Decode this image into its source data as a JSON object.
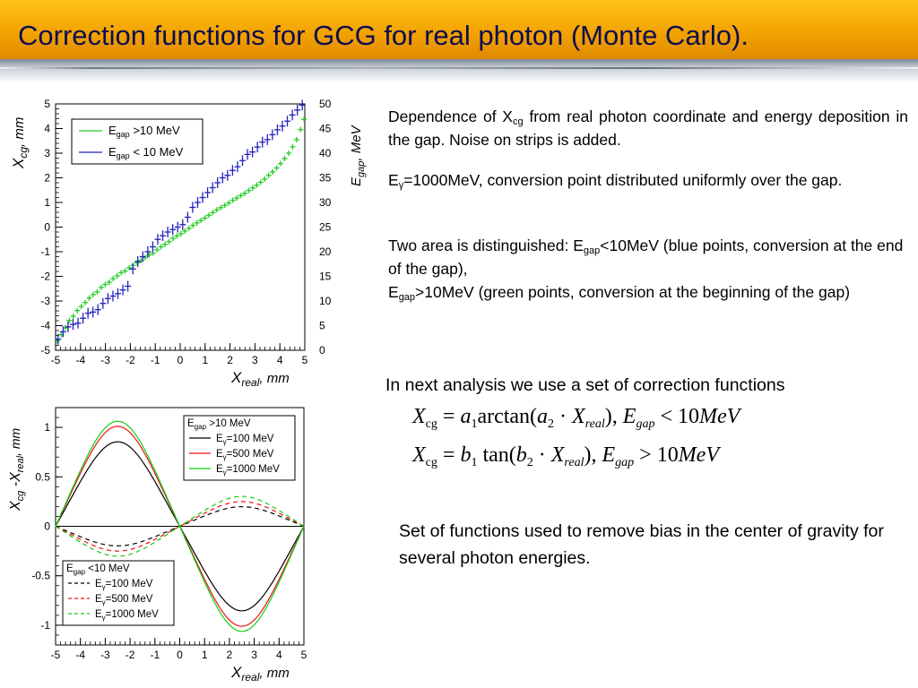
{
  "slide": {
    "title": "Correction functions for GCG for real photon (Monte Carlo)."
  },
  "text": {
    "p1": {
      "a": "Dependence of X",
      "sub": "cg",
      "b": " from real photon coordinate and energy deposition in the gap. Noise on strips is added."
    },
    "p2": {
      "a": "E",
      "sub": "γ",
      "b": "=1000MeV, conversion point distributed uniformly over the gap."
    },
    "p3": {
      "line1": "Two area is distinguished:  E",
      "sub1": "gap",
      "rest1": "<10MeV (blue points, conversion at the end of the gap),",
      "line2": "E",
      "sub2": "gap",
      "rest2": ">10MeV (green points, conversion at the beginning of the gap)"
    },
    "next": "In next analysis we use a set of correction functions",
    "set": "Set of functions used to remove  bias in the center of gravity for several photon energies."
  },
  "formulas": {
    "f1": {
      "lhs": "X",
      "lhs_sub": "cg",
      "eq": " = ",
      "coef": "a",
      "coef_sub": "1",
      "fn": "arctan(",
      "coef2": "a",
      "coef2_sub": "2",
      "dot": " · ",
      "x": "X",
      "x_sub": "real",
      "close": "), ",
      "e": "E",
      "e_sub": "gap",
      "rel": " < ",
      "num": "10",
      "unit": "MeV"
    },
    "f2": {
      "lhs": "X",
      "lhs_sub": "cg",
      "eq": " = ",
      "coef": "b",
      "coef_sub": "1",
      "fn": " tan(",
      "coef2": "b",
      "coef2_sub": "2",
      "dot": " · ",
      "x": "X",
      "x_sub": "real",
      "close": "), ",
      "e": "E",
      "e_sub": "gap",
      "rel": " > ",
      "num": "10",
      "unit": "MeV"
    }
  },
  "chart_data": [
    {
      "type": "scatter",
      "xlim": [
        -5,
        5
      ],
      "ylim": [
        -5,
        5
      ],
      "y2lim": [
        0,
        50
      ],
      "xticks": [
        "-5",
        "-4",
        "-3",
        "-2",
        "-1",
        "0",
        "1",
        "2",
        "3",
        "4",
        "5"
      ],
      "yticks": [
        "-5",
        "-4",
        "-3",
        "-2",
        "-1",
        "0",
        "1",
        "2",
        "3",
        "4",
        "5"
      ],
      "y2ticks": [
        "0",
        "5",
        "10",
        "15",
        "20",
        "25",
        "30",
        "35",
        "40",
        "45",
        "50"
      ],
      "xlabel": {
        "main": "X",
        "sub": "real",
        "tail": ", mm"
      },
      "ylabel": {
        "main": "X",
        "sub": "cg",
        "tail": ", mm"
      },
      "y2label": {
        "main": "E",
        "sub": "gap",
        "tail": ", MeV"
      },
      "legend_position": "top-left",
      "colors": {
        "green": "#22cc22",
        "blue": "#2222bb"
      },
      "legend": [
        {
          "label_main": "E",
          "label_sub": "gap",
          "label_tail": " >10 MeV",
          "color": "#22cc22"
        },
        {
          "label_main": "E",
          "label_sub": "gap",
          "label_tail": " < 10 MeV",
          "color": "#2222bb"
        }
      ],
      "series": [
        {
          "color": "#22cc22",
          "x": [
            -4.93,
            -4.77,
            -4.61,
            -4.45,
            -4.29,
            -4.13,
            -3.97,
            -3.81,
            -3.65,
            -3.49,
            -3.33,
            -3.17,
            -3.01,
            -2.85,
            -2.69,
            -2.53,
            -2.37,
            -2.21,
            -2.05,
            -1.89,
            -1.73,
            -1.57,
            -1.41,
            -1.25,
            -1.09,
            -0.93,
            -0.77,
            -0.61,
            -0.45,
            -0.29,
            -0.13,
            0.03,
            0.19,
            0.35,
            0.51,
            0.67,
            0.83,
            0.99,
            1.15,
            1.31,
            1.47,
            1.63,
            1.79,
            1.95,
            2.11,
            2.27,
            2.43,
            2.59,
            2.75,
            2.91,
            3.07,
            3.23,
            3.39,
            3.55,
            3.71,
            3.87,
            4.03,
            4.19,
            4.35,
            4.51,
            4.67,
            4.83,
            4.97
          ],
          "y": [
            -4.62,
            -4.37,
            -4.09,
            -3.79,
            -3.62,
            -3.39,
            -3.22,
            -3.06,
            -2.88,
            -2.74,
            -2.63,
            -2.45,
            -2.33,
            -2.24,
            -2.09,
            -1.98,
            -1.85,
            -1.78,
            -1.65,
            -1.55,
            -1.45,
            -1.36,
            -1.24,
            -1.13,
            -1.06,
            -0.92,
            -0.8,
            -0.7,
            -0.59,
            -0.46,
            -0.36,
            -0.27,
            -0.16,
            -0.05,
            0.07,
            0.17,
            0.27,
            0.37,
            0.48,
            0.59,
            0.7,
            0.79,
            0.88,
            0.98,
            1.09,
            1.18,
            1.28,
            1.37,
            1.48,
            1.59,
            1.7,
            1.82,
            1.95,
            2.1,
            2.24,
            2.4,
            2.58,
            2.78,
            3.0,
            3.26,
            3.55,
            3.96,
            4.37
          ]
        },
        {
          "color": "#2222bb",
          "x": [
            -4.9,
            -4.7,
            -4.5,
            -4.3,
            -4.1,
            -3.9,
            -3.7,
            -3.5,
            -3.3,
            -3.1,
            -2.9,
            -2.7,
            -2.5,
            -2.3,
            -2.1,
            -1.9,
            -1.7,
            -1.5,
            -1.3,
            -1.1,
            -0.9,
            -0.7,
            -0.5,
            -0.3,
            -0.1,
            0.1,
            0.3,
            0.5,
            0.7,
            0.9,
            1.1,
            1.3,
            1.5,
            1.7,
            1.9,
            2.1,
            2.3,
            2.5,
            2.7,
            2.9,
            3.1,
            3.3,
            3.5,
            3.7,
            3.9,
            4.1,
            4.3,
            4.5,
            4.7,
            4.9
          ],
          "y": [
            -4.55,
            -4.25,
            -4.05,
            -3.95,
            -3.9,
            -3.7,
            -3.5,
            -3.45,
            -3.35,
            -3.1,
            -2.9,
            -2.8,
            -2.7,
            -2.55,
            -2.4,
            -1.7,
            -1.4,
            -1.2,
            -1.0,
            -0.8,
            -0.5,
            -0.35,
            -0.2,
            -0.1,
            0.0,
            0.1,
            0.4,
            0.8,
            1.0,
            1.2,
            1.4,
            1.6,
            1.8,
            2.0,
            2.1,
            2.3,
            2.45,
            2.7,
            2.95,
            3.05,
            3.25,
            3.45,
            3.55,
            3.75,
            3.95,
            4.1,
            4.3,
            4.55,
            4.75,
            4.95
          ]
        }
      ]
    },
    {
      "type": "line",
      "xlim": [
        -5,
        5
      ],
      "ylim": [
        -1.2,
        1.2
      ],
      "xticks": [
        "-5",
        "-4",
        "-3",
        "-2",
        "-1",
        "0",
        "1",
        "2",
        "3",
        "4",
        "5"
      ],
      "yticks": [
        "-1",
        "-0.5",
        "0",
        "0.5",
        "1"
      ],
      "xlabel": {
        "main": "X",
        "sub": "real",
        "tail": ", mm"
      },
      "ylabel": {
        "main": "X",
        "sub": "cg",
        "mid": " -X",
        "sub2": "real",
        "tail": ", mm"
      },
      "legend_top": {
        "header_main": "E",
        "header_sub": "gap",
        "header_tail": " >10 MeV",
        "entries": [
          {
            "main": "E",
            "sub": "γ",
            "tail": "=100 MeV",
            "color": "#000000"
          },
          {
            "main": "E",
            "sub": "γ",
            "tail": "=500 MeV",
            "color": "#ee1111"
          },
          {
            "main": "E",
            "sub": "γ",
            "tail": "=1000 MeV",
            "color": "#11cc11"
          }
        ]
      },
      "legend_bottom": {
        "header_main": "E",
        "header_sub": "gap",
        "header_tail": " <10 MeV",
        "entries": [
          {
            "main": "E",
            "sub": "γ",
            "tail": "=100 MeV",
            "color": "#000000"
          },
          {
            "main": "E",
            "sub": "γ",
            "tail": "=500 MeV",
            "color": "#ee1111"
          },
          {
            "main": "E",
            "sub": "γ",
            "tail": "=1000 MeV",
            "color": "#11cc11"
          }
        ]
      },
      "series": [
        {
          "style": "solid",
          "color": "#000000",
          "amplitude": 0.82,
          "period_x": [
            -5,
            0,
            5
          ]
        },
        {
          "style": "solid",
          "color": "#ee1111",
          "amplitude": 0.97,
          "period_x": [
            -5,
            0,
            5
          ]
        },
        {
          "style": "solid",
          "color": "#11cc11",
          "amplitude": 1.02,
          "period_x": [
            -5,
            0,
            5
          ]
        },
        {
          "style": "dashed",
          "color": "#000000",
          "amplitude": -0.19,
          "period_x": [
            -5,
            0,
            5
          ]
        },
        {
          "style": "dashed",
          "color": "#ee1111",
          "amplitude": -0.24,
          "period_x": [
            -5,
            0,
            5
          ]
        },
        {
          "style": "dashed",
          "color": "#11cc11",
          "amplitude": -0.29,
          "period_x": [
            -5,
            0,
            5
          ]
        }
      ]
    }
  ]
}
